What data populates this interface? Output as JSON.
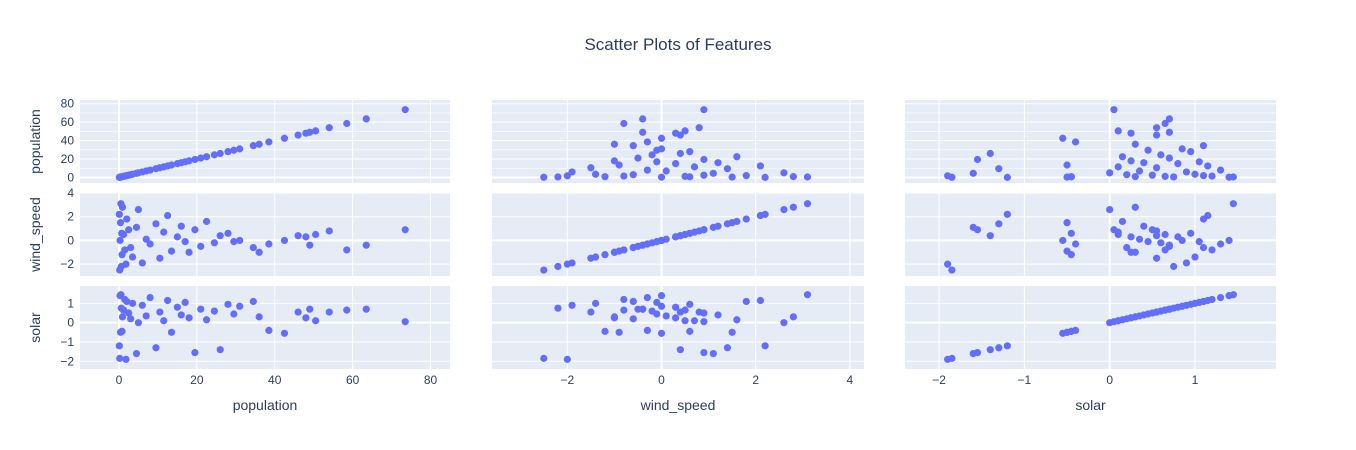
{
  "chart_data": {
    "type": "scatter",
    "title": "Scatter Plots of Features",
    "dimensions": [
      "population",
      "wind_speed",
      "solar"
    ],
    "colors": {
      "marker": "#636efa",
      "plot_bg": "#e5ecf6",
      "grid": "#ffffff",
      "text": "#2a3f5f"
    },
    "grid": true,
    "legend": "none",
    "axes": {
      "population": {
        "range": [
          -10,
          85
        ],
        "ticks": [
          0,
          20,
          40,
          60,
          80
        ],
        "tick_labels": [
          "0",
          "20",
          "40",
          "60",
          "80"
        ]
      },
      "wind_speed": {
        "range": [
          -3.6,
          4.3
        ],
        "ticks": [
          -2,
          0,
          2,
          4
        ],
        "tick_labels": [
          "−2",
          "0",
          "2",
          "4"
        ]
      },
      "solar": {
        "range": [
          -2.4,
          1.95
        ],
        "ticks": [
          -2,
          -1,
          0,
          1
        ],
        "tick_labels": [
          "−2",
          "−1",
          "0",
          "1"
        ]
      }
    },
    "y_axes": {
      "population": {
        "range": [
          -6,
          84
        ],
        "ticks": [
          0,
          20,
          40,
          60,
          80
        ],
        "tick_labels": [
          "0",
          "20",
          "40",
          "60",
          "80"
        ]
      },
      "wind_speed": {
        "range": [
          -3.0,
          4.0
        ],
        "ticks": [
          -2,
          0,
          2,
          4
        ],
        "tick_labels": [
          "−2",
          "0",
          "2",
          "4"
        ]
      },
      "solar": {
        "range": [
          -2.4,
          1.9
        ],
        "ticks": [
          -2,
          -1,
          0,
          1
        ],
        "tick_labels": [
          "−2",
          "−1",
          "0",
          "1"
        ]
      }
    },
    "points": [
      {
        "population": 0.2,
        "wind_speed": -2.5,
        "solar": -1.85
      },
      {
        "population": 0.5,
        "wind_speed": 3.1,
        "solar": 1.45
      },
      {
        "population": 0.8,
        "wind_speed": -1.2,
        "solar": -0.45
      },
      {
        "population": 1.2,
        "wind_speed": 0.5,
        "solar": 0.65
      },
      {
        "population": 2.0,
        "wind_speed": 1.8,
        "solar": 1.1
      },
      {
        "population": 3.0,
        "wind_speed": -0.6,
        "solar": 0.2
      },
      {
        "population": 4.5,
        "wind_speed": 1.1,
        "solar": -1.6
      },
      {
        "population": 5.0,
        "wind_speed": 2.6,
        "solar": 0.0
      },
      {
        "population": 6.0,
        "wind_speed": -1.9,
        "solar": 0.9
      },
      {
        "population": 7.0,
        "wind_speed": 0.1,
        "solar": 0.35
      },
      {
        "population": 8.0,
        "wind_speed": -0.3,
        "solar": 1.3
      },
      {
        "population": 9.5,
        "wind_speed": 1.4,
        "solar": -1.3
      },
      {
        "population": 10.5,
        "wind_speed": -1.5,
        "solar": 0.55
      },
      {
        "population": 11.5,
        "wind_speed": 0.7,
        "solar": 0.1
      },
      {
        "population": 12.5,
        "wind_speed": 2.1,
        "solar": 1.15
      },
      {
        "population": 13.5,
        "wind_speed": -0.9,
        "solar": -0.5
      },
      {
        "population": 15.0,
        "wind_speed": 0.3,
        "solar": 0.8
      },
      {
        "population": 16.0,
        "wind_speed": 1.2,
        "solar": 0.4
      },
      {
        "population": 17.0,
        "wind_speed": -0.1,
        "solar": 1.05
      },
      {
        "population": 18.0,
        "wind_speed": -1.0,
        "solar": 0.25
      },
      {
        "population": 19.5,
        "wind_speed": 0.9,
        "solar": -1.55
      },
      {
        "population": 21.0,
        "wind_speed": -0.5,
        "solar": 0.7
      },
      {
        "population": 22.5,
        "wind_speed": 1.6,
        "solar": 0.15
      },
      {
        "population": 24.5,
        "wind_speed": -0.2,
        "solar": 0.6
      },
      {
        "population": 26.0,
        "wind_speed": 0.4,
        "solar": -1.4
      },
      {
        "population": 28.0,
        "wind_speed": 0.6,
        "solar": 0.95
      },
      {
        "population": 29.5,
        "wind_speed": -0.1,
        "solar": 0.45
      },
      {
        "population": 31.0,
        "wind_speed": 0.0,
        "solar": 0.85
      },
      {
        "population": 34.5,
        "wind_speed": -0.6,
        "solar": 1.1
      },
      {
        "population": 36.0,
        "wind_speed": -1.0,
        "solar": 0.3
      },
      {
        "population": 38.5,
        "wind_speed": -0.3,
        "solar": -0.4
      },
      {
        "population": 42.5,
        "wind_speed": 0.0,
        "solar": -0.55
      },
      {
        "population": 46.0,
        "wind_speed": 0.4,
        "solar": 0.55
      },
      {
        "population": 48.0,
        "wind_speed": 0.3,
        "solar": 0.25
      },
      {
        "population": 49.0,
        "wind_speed": -0.4,
        "solar": 0.7
      },
      {
        "population": 50.5,
        "wind_speed": 0.5,
        "solar": 0.1
      },
      {
        "population": 54.0,
        "wind_speed": 0.8,
        "solar": 0.55
      },
      {
        "population": 58.5,
        "wind_speed": -0.8,
        "solar": 0.65
      },
      {
        "population": 63.5,
        "wind_speed": -0.4,
        "solar": 0.7
      },
      {
        "population": 73.5,
        "wind_speed": 0.9,
        "solar": 0.05
      },
      {
        "population": 0.3,
        "wind_speed": 0.0,
        "solar": 1.4
      },
      {
        "population": 0.1,
        "wind_speed": 2.2,
        "solar": -1.2
      },
      {
        "population": 0.6,
        "wind_speed": -2.2,
        "solar": 0.75
      },
      {
        "population": 0.4,
        "wind_speed": 1.5,
        "solar": -0.5
      },
      {
        "population": 1.5,
        "wind_speed": -0.8,
        "solar": 1.2
      },
      {
        "population": 2.5,
        "wind_speed": 0.9,
        "solar": 0.5
      },
      {
        "population": 3.5,
        "wind_speed": -1.4,
        "solar": 1.0
      },
      {
        "population": 0.9,
        "wind_speed": 2.8,
        "solar": 0.3
      },
      {
        "population": 1.8,
        "wind_speed": -2.0,
        "solar": -1.9
      },
      {
        "population": 0.7,
        "wind_speed": 0.6,
        "solar": -0.45
      }
    ]
  }
}
